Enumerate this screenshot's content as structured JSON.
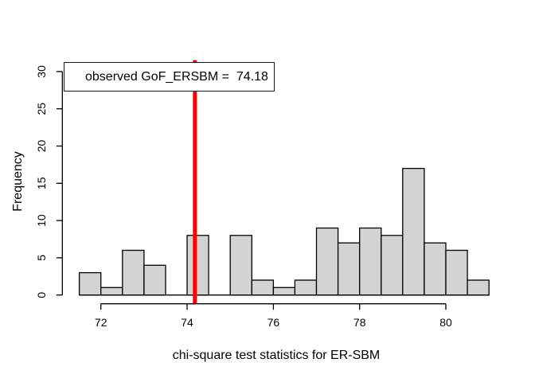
{
  "chart_data": {
    "type": "bar",
    "subtype": "histogram",
    "title": "",
    "xlabel": "chi-square test statistics for ER-SBM",
    "ylabel": "Frequency",
    "bin_edges": [
      71.5,
      72.0,
      72.5,
      73.0,
      73.5,
      74.0,
      74.5,
      75.0,
      75.5,
      76.0,
      76.5,
      77.0,
      77.5,
      78.0,
      78.5,
      79.0,
      79.5,
      80.0,
      80.5,
      81.0
    ],
    "counts": [
      3,
      1,
      6,
      4,
      0,
      8,
      0,
      8,
      2,
      1,
      2,
      9,
      7,
      9,
      8,
      17,
      7,
      6,
      2
    ],
    "x_ticks": [
      72,
      74,
      76,
      78,
      80
    ],
    "y_ticks": [
      0,
      5,
      10,
      15,
      20,
      25,
      30
    ],
    "xlim": [
      71.12,
      81.38
    ],
    "ylim": [
      0,
      31.2
    ],
    "grid": false,
    "legend_position": "topleft",
    "colors": {
      "bar_fill": "#D3D3D3",
      "bar_border": "#000000",
      "axis": "#000000",
      "text": "#000000",
      "observed_line": "#FF0000",
      "legend_fill": "#FFFFFF",
      "legend_border": "#1A1A1A"
    },
    "observed_line": {
      "x": 74.18,
      "stroke_width": 5
    },
    "legend": {
      "label": "observed GoF_ERSBM =  74.18"
    }
  }
}
